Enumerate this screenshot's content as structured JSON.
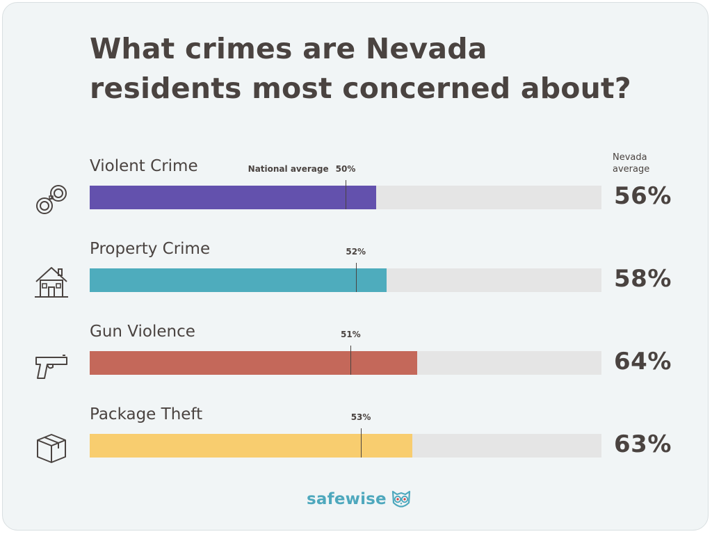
{
  "title_line1": "What crimes are Nevada",
  "title_line2": "residents most concerned about?",
  "state_avg_header_line1": "Nevada",
  "state_avg_header_line2": "average",
  "national_caption": "National average",
  "logo_text": "safewise",
  "colors": {
    "background": "#f1f5f6",
    "track": "#e5e5e5",
    "text": "#4a4340",
    "logo": "#4ea8bd"
  },
  "chart_data": {
    "type": "bar",
    "orientation": "horizontal",
    "xlim": [
      0,
      100
    ],
    "categories": [
      "Violent Crime",
      "Property Crime",
      "Gun Violence",
      "Package Theft"
    ],
    "icons": [
      "handcuffs-icon",
      "house-icon",
      "gun-icon",
      "package-icon"
    ],
    "series": [
      {
        "name": "Nevada average",
        "values": [
          56,
          58,
          64,
          63
        ],
        "labels": [
          "56%",
          "58%",
          "64%",
          "63%"
        ],
        "colors": [
          "#6351ad",
          "#4eacbd",
          "#c4685a",
          "#f8cd6f"
        ]
      },
      {
        "name": "National average",
        "values": [
          50,
          52,
          51,
          53
        ],
        "labels": [
          "50%",
          "52%",
          "51%",
          "53%"
        ]
      }
    ]
  }
}
